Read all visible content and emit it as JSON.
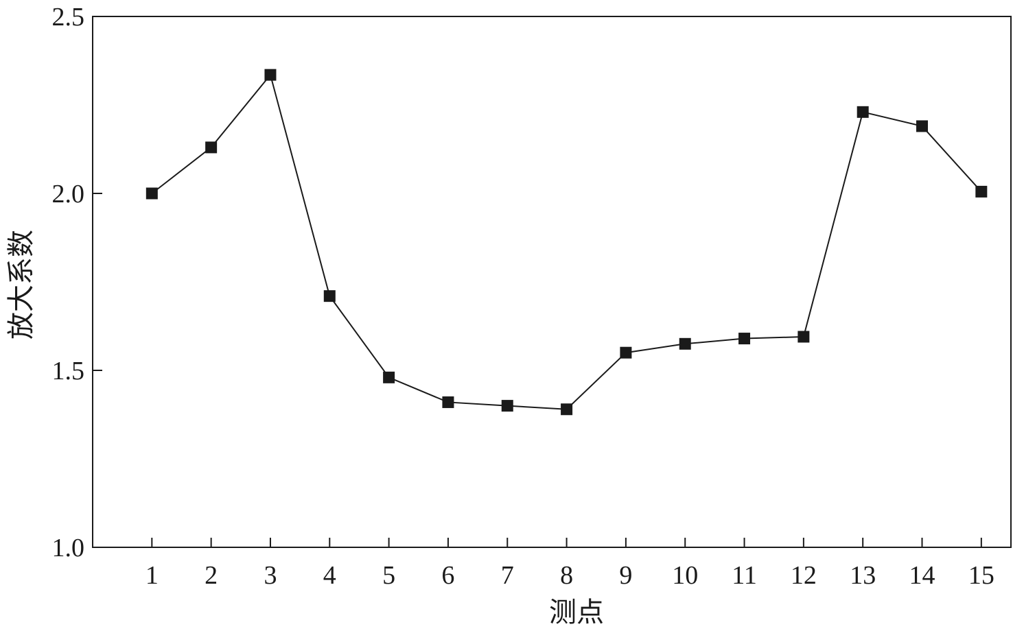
{
  "chart_data": {
    "type": "line",
    "title": "",
    "xlabel": "测点",
    "ylabel": "放大系数",
    "x": [
      1,
      2,
      3,
      4,
      5,
      6,
      7,
      8,
      9,
      10,
      11,
      12,
      13,
      14,
      15
    ],
    "x_tick_labels": [
      "1",
      "2",
      "3",
      "4",
      "5",
      "6",
      "7",
      "8",
      "9",
      "10",
      "11",
      "12",
      "13",
      "14",
      "15"
    ],
    "series": [
      {
        "values": [
          2.0,
          2.13,
          2.335,
          1.71,
          1.48,
          1.41,
          1.4,
          1.39,
          1.55,
          1.575,
          1.59,
          1.595,
          2.23,
          2.19,
          2.005
        ],
        "marker": "square",
        "color": "#1a1a1a"
      }
    ],
    "ylim": [
      1.0,
      2.5
    ],
    "xlim": [
      0,
      15.5
    ],
    "y_ticks": [
      1.0,
      1.5,
      2.0,
      2.5
    ],
    "y_tick_labels": [
      "1.0",
      "1.5",
      "2.0",
      "2.5"
    ],
    "grid": false,
    "legend": "none"
  }
}
